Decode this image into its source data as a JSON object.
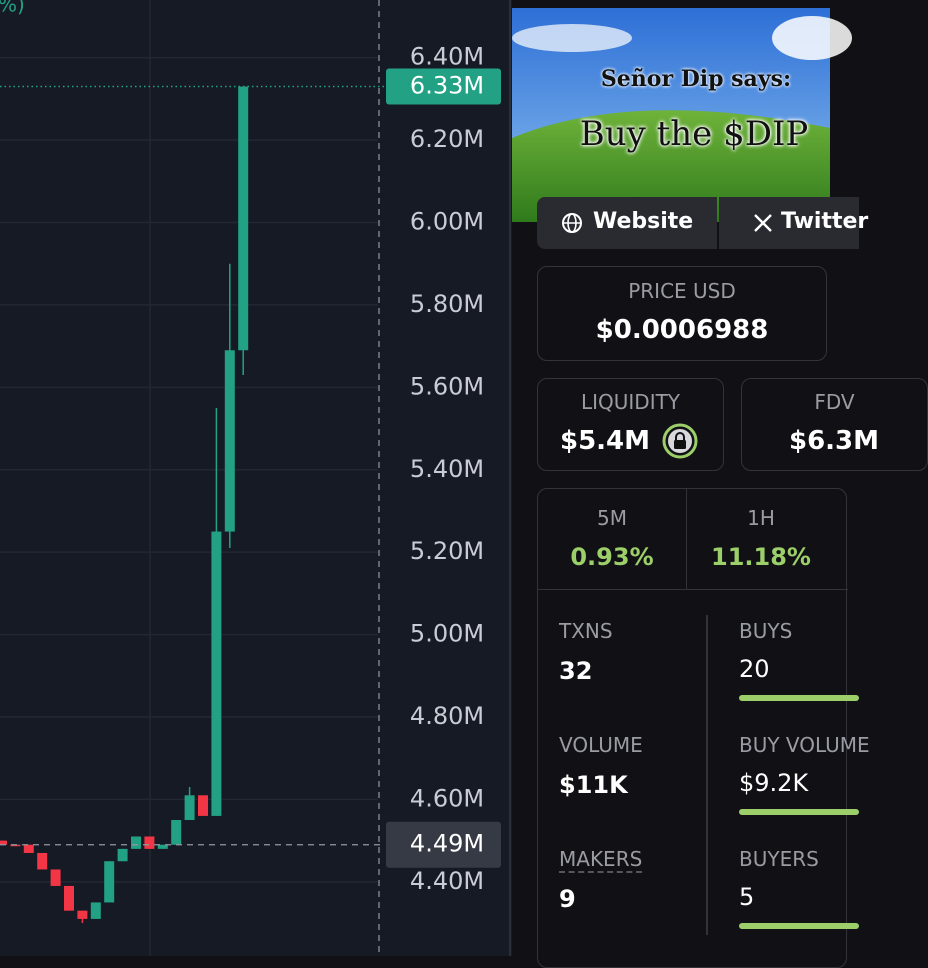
{
  "chart_data": {
    "type": "candlestick",
    "corner_text": "%)",
    "ylim": [
      4.22,
      6.54
    ],
    "yticks": [
      {
        "value": 4.4,
        "label": "4.40M"
      },
      {
        "value": 4.6,
        "label": "4.60M"
      },
      {
        "value": 4.8,
        "label": "4.80M"
      },
      {
        "value": 5.0,
        "label": "5.00M"
      },
      {
        "value": 5.2,
        "label": "5.20M"
      },
      {
        "value": 5.4,
        "label": "5.40M"
      },
      {
        "value": 5.6,
        "label": "5.60M"
      },
      {
        "value": 5.8,
        "label": "5.80M"
      },
      {
        "value": 6.0,
        "label": "6.00M"
      },
      {
        "value": 6.2,
        "label": "6.20M"
      },
      {
        "value": 6.4,
        "label": "6.40M"
      }
    ],
    "grid": true,
    "up_color": "#22a185",
    "down_color": "#f23645",
    "open": [
      4.5,
      4.49,
      4.49,
      4.47,
      4.43,
      4.39,
      4.33,
      4.31,
      4.35,
      4.45,
      4.48,
      4.51,
      4.48,
      4.49,
      4.55,
      4.61,
      4.56,
      5.25,
      5.69
    ],
    "high": [
      4.5,
      4.49,
      4.49,
      4.47,
      4.43,
      4.39,
      4.33,
      4.35,
      4.45,
      4.48,
      4.51,
      4.51,
      4.49,
      4.55,
      4.63,
      4.61,
      5.55,
      5.9,
      6.33
    ],
    "low": [
      4.49,
      4.49,
      4.47,
      4.43,
      4.39,
      4.33,
      4.3,
      4.31,
      4.35,
      4.45,
      4.48,
      4.48,
      4.48,
      4.49,
      4.55,
      4.56,
      4.56,
      5.21,
      5.63
    ],
    "close": [
      4.49,
      4.49,
      4.47,
      4.43,
      4.39,
      4.33,
      4.31,
      4.35,
      4.45,
      4.48,
      4.51,
      4.48,
      4.49,
      4.55,
      4.61,
      4.56,
      5.25,
      5.69,
      6.33
    ],
    "last_price": {
      "value": 6.33,
      "label": "6.33M"
    },
    "crosshair_price": {
      "value": 4.49,
      "label": "4.49M"
    }
  },
  "panel": {
    "banner": {
      "caption": "Señor Dip says:",
      "headline": "Buy the $DIP"
    },
    "links": [
      "Website",
      "Twitter"
    ],
    "price_usd": {
      "label": "PRICE USD",
      "value": "$0.0006988"
    },
    "liquidity": {
      "label": "LIQUIDITY",
      "value": "$5.4M"
    },
    "fdv": {
      "label": "FDV",
      "value": "$6.3M"
    },
    "changes": [
      {
        "label": "5M",
        "value": "0.93%"
      },
      {
        "label": "1H",
        "value": "11.18%"
      }
    ],
    "stats": [
      {
        "label": "TXNS",
        "value": "32"
      },
      {
        "label": "BUYS",
        "value": "20"
      },
      {
        "label": "VOLUME",
        "value": "$11K"
      },
      {
        "label": "BUY VOLUME",
        "value": "$9.2K"
      },
      {
        "label": "MAKERS",
        "value": "9"
      },
      {
        "label": "BUYERS",
        "value": "5"
      }
    ]
  }
}
